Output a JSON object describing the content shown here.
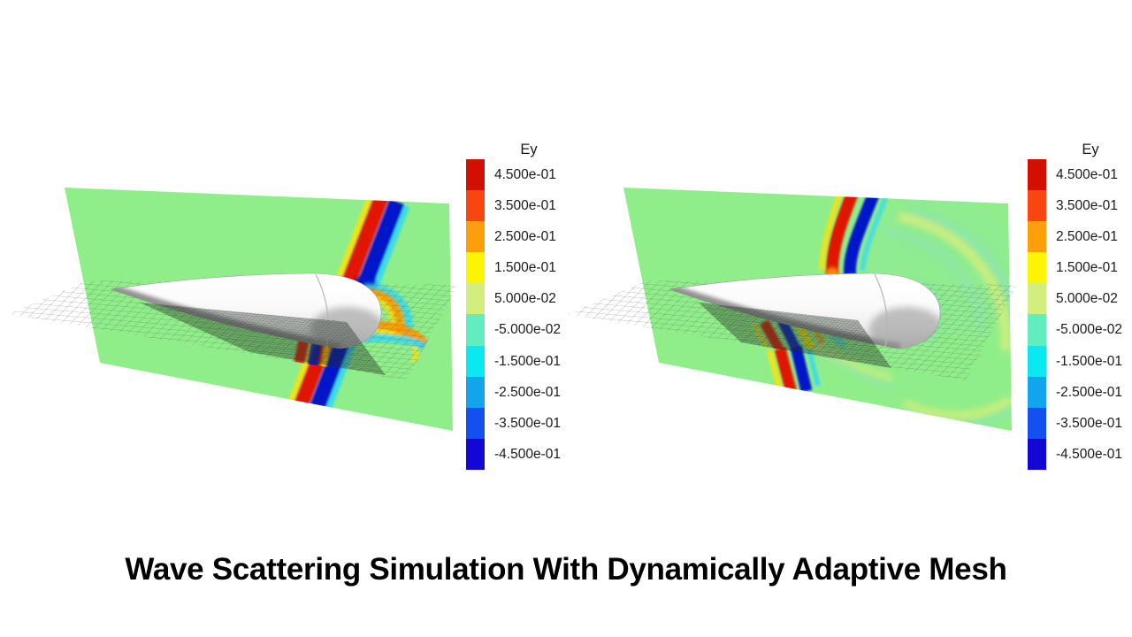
{
  "slide": {
    "title": "Wave Scattering Simulation With Dynamically Adaptive Mesh",
    "background": "#ffffff"
  },
  "legend": {
    "title": "Ey",
    "entries": [
      {
        "label": "4.500e-01",
        "color": "#d20f00"
      },
      {
        "label": "3.500e-01",
        "color": "#f94611"
      },
      {
        "label": "2.500e-01",
        "color": "#fba00b"
      },
      {
        "label": "1.500e-01",
        "color": "#fdf403"
      },
      {
        "label": "5.000e-02",
        "color": "#d2ee7f"
      },
      {
        "label": "-5.000e-02",
        "color": "#62edc1"
      },
      {
        "label": "-1.500e-01",
        "color": "#0ae9f2"
      },
      {
        "label": "-2.500e-01",
        "color": "#12a5ee"
      },
      {
        "label": "-3.500e-01",
        "color": "#1450f0"
      },
      {
        "label": "-4.500e-01",
        "color": "#1207d5"
      }
    ]
  },
  "colors": {
    "plane_green": "#90ee8a",
    "wave_red": "#e01400",
    "wave_navy": "#0016c8",
    "wave_cyan": "#2fd8f8",
    "wave_yellow": "#ffe400",
    "wave_orange": "#ff9800",
    "ring_yellow": "#dcee7c",
    "ring_teal": "#8fe2bc",
    "mesh_line": "#474747",
    "title_color": "#000000",
    "bg": "#ffffff"
  },
  "chart_data": {
    "type": "heatmap",
    "title": "Wave Scattering Simulation With Dynamically Adaptive Mesh",
    "field": "Ey",
    "colorbar": {
      "title": "Ey",
      "tick_labels": [
        "4.500e-01",
        "3.500e-01",
        "2.500e-01",
        "1.500e-01",
        "5.000e-02",
        "-5.000e-02",
        "-1.500e-01",
        "-2.500e-01",
        "-3.500e-01",
        "-4.500e-01"
      ],
      "colors": [
        "#d20f00",
        "#f94611",
        "#fba00b",
        "#fdf403",
        "#d2ee7f",
        "#62edc1",
        "#0ae9f2",
        "#12a5ee",
        "#1450f0",
        "#1207d5"
      ],
      "range": [
        -0.5,
        0.5
      ],
      "bands": 10
    },
    "panels": [
      {
        "position": "left",
        "content": "Planar incident wave (red/blue diagonal stripe on vertical Ey slice) hitting a blunt-nosed cone; horizontal adaptive mesh plane with refined cells near the body."
      },
      {
        "position": "right",
        "content": "Later time step: wave diffracted around the cone producing a circular scattered wavefront ring; mesh refinement follows the wave."
      }
    ],
    "legend_position": "right of each panel"
  }
}
